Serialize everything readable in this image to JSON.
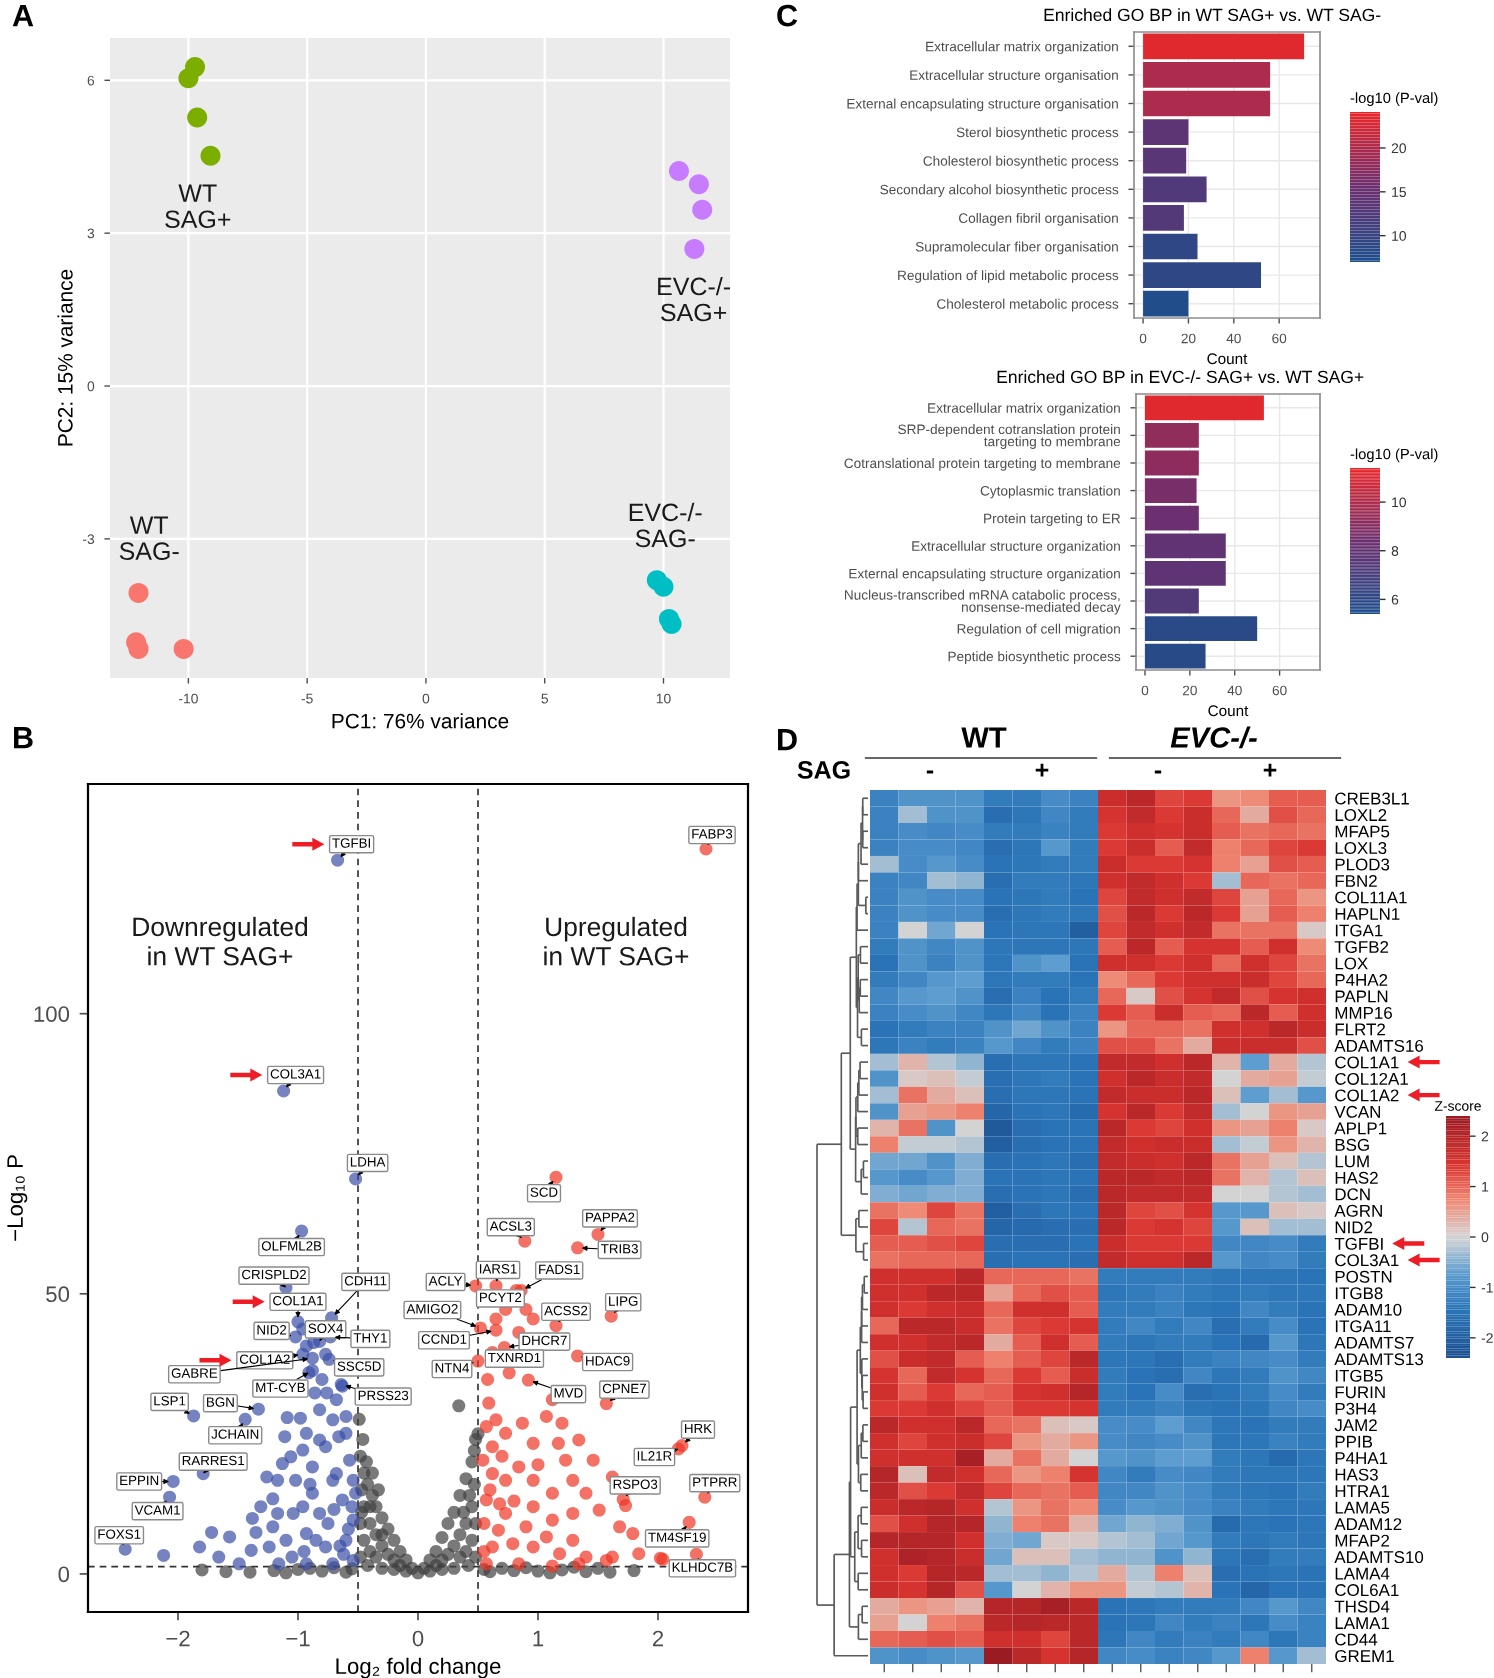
{
  "chart_data": [
    {
      "type": "scatter",
      "annotations": [
        "A"
      ],
      "xlabel": "PC1: 76% variance",
      "ylabel": "PC2: 15% variance",
      "xlim": [
        -13.3,
        12.8
      ],
      "ylim": [
        -5.73,
        6.83
      ],
      "xticks": [
        -10,
        -5,
        0,
        5,
        10
      ],
      "yticks": [
        -3,
        0,
        3,
        6
      ],
      "grid": true,
      "marker": "circle",
      "series": [
        {
          "name": "WT\nSAG+",
          "color": "#7cae00",
          "x": [
            -9.72,
            -10.0,
            -9.63,
            -9.07
          ],
          "values": [
            6.26,
            6.04,
            5.27,
            4.52
          ]
        },
        {
          "name": "EVC-/-\nSAG+",
          "color": "#c77cff",
          "x": [
            10.65,
            11.49,
            11.63,
            11.3
          ],
          "values": [
            4.22,
            3.96,
            3.46,
            2.69
          ]
        },
        {
          "name": "WT\nSAG-",
          "color": "#f8766d",
          "x": [
            -12.1,
            -12.2,
            -12.1,
            -10.2
          ],
          "values": [
            -4.06,
            -5.03,
            -5.16,
            -5.16
          ]
        },
        {
          "name": "EVC-/-\nSAG-",
          "color": "#00bfc4",
          "x": [
            9.72,
            10.0,
            10.23,
            10.34
          ],
          "values": [
            -3.81,
            -3.94,
            -4.57,
            -4.67
          ]
        }
      ]
    },
    {
      "type": "bar",
      "orientation": "horizontal",
      "title": "Enriched GO BP in WT SAG+ vs. WT SAG-",
      "annotations": [
        "C"
      ],
      "categories": [
        "Extracellular matrix organization",
        "Extracellular structure organisation",
        "External encapsulating structure organisation",
        "Sterol biosynthetic process",
        "Cholesterol biosynthetic process",
        "Secondary alcohol biosynthetic process",
        "Collagen fibril organisation",
        "Supramolecular fiber organisation",
        "Regulation of lipid metabolic process",
        "Cholesterol metabolic process"
      ],
      "values": [
        71,
        56,
        56,
        20,
        19,
        28,
        18,
        24,
        52,
        20
      ],
      "cvalues": [
        23.5,
        20,
        20,
        14,
        13.5,
        12.5,
        13,
        9,
        9,
        7.5
      ],
      "clabel": "-log10 (P-val)",
      "clim": [
        7.0,
        24.1
      ],
      "cticks": [
        10,
        15,
        20
      ],
      "xlabel": "Count",
      "xlim": [
        -4,
        78
      ],
      "xticks": [
        0,
        20,
        40,
        60
      ],
      "grid": true
    },
    {
      "type": "bar",
      "orientation": "horizontal",
      "title": "Enriched GO BP in EVC-/- SAG+ vs. WT SAG+",
      "categories": [
        "Extracellular matrix organization",
        "SRP-dependent cotranslation protein\ntargeting to membrane",
        "Cotranslational protein targeting to membrane",
        "Cytoplasmic translation",
        "Protein targeting to ER",
        "Extracellular structure organization",
        "External encapsulating structure organization",
        "Nucleus-transcribed mRNA catabolic process,\nnonsense-mediated decay",
        "Regulation of cell migration",
        "Peptide biosynthetic process"
      ],
      "values": [
        53,
        24,
        24,
        23,
        24,
        36,
        36,
        24,
        50,
        27
      ],
      "cvalues": [
        11.2,
        9.3,
        9.2,
        8.7,
        8.4,
        8.0,
        7.9,
        7.4,
        5.9,
        5.8
      ],
      "clabel": "-log10 (P-val)",
      "clim": [
        5.4,
        11.4
      ],
      "cticks": [
        6,
        8,
        10
      ],
      "xlabel": "Count",
      "xlim": [
        -4,
        78
      ],
      "xticks": [
        0,
        20,
        40,
        60
      ],
      "grid": true
    },
    {
      "type": "scatter",
      "xlabel": "Log₂ fold change",
      "ylabel": "−Log₁₀ P",
      "xlim": [
        -2.75,
        2.75
      ],
      "ylim": [
        -6.8,
        141
      ],
      "xticks": [
        {
          "value": -2,
          "label": "−2"
        },
        {
          "value": -1,
          "label": "−1"
        },
        0,
        1,
        2
      ],
      "yticks": [
        0,
        50,
        100
      ],
      "marker": "circle",
      "ref_lines": [
        {
          "axis": "x",
          "value": -0.5,
          "line_style": "dashed"
        },
        {
          "axis": "x",
          "value": 0.5,
          "line_style": "dashed"
        },
        {
          "axis": "y",
          "value": 1.3,
          "line_style": "dashed"
        }
      ],
      "annotations": [
        "B",
        "Downregulated\nin WT SAG+",
        "Upregulated\nin WT SAG+",
        {
          "text": "TGFBI",
          "x": -0.67,
          "y": 127.4
        },
        {
          "text": "COL3A1",
          "x": -1.12,
          "y": 86.2
        },
        {
          "text": "LDHA",
          "x": -0.52,
          "y": 70.5
        },
        {
          "text": "OLFML2B",
          "x": -0.97,
          "y": 61.2
        },
        {
          "text": "CRISPLD2",
          "x": -1.1,
          "y": 51.1
        },
        {
          "text": "CDH11",
          "x": -0.72,
          "y": 45.7
        },
        {
          "text": "COL1A1",
          "x": -1.0,
          "y": 45.0
        },
        {
          "text": "NID2",
          "x": -1.02,
          "y": 42.3
        },
        {
          "text": "SOX4",
          "x": -0.82,
          "y": 41.5
        },
        {
          "text": "THY1",
          "x": -0.73,
          "y": 42.3
        },
        {
          "text": "COL1A2",
          "x": -0.96,
          "y": 39.2
        },
        {
          "text": "GABRE",
          "x": -0.88,
          "y": 38.5
        },
        {
          "text": "MT-CYB",
          "x": -0.88,
          "y": 36.3
        },
        {
          "text": "SSC5D",
          "x": -0.74,
          "y": 38.3
        },
        {
          "text": "PRSS23",
          "x": -0.64,
          "y": 33.8
        },
        {
          "text": "LSP1",
          "x": -1.87,
          "y": 28.2
        },
        {
          "text": "BGN",
          "x": -1.33,
          "y": 29.4
        },
        {
          "text": "JCHAIN",
          "x": -1.44,
          "y": 27.6
        },
        {
          "text": "RARRES1",
          "x": -1.79,
          "y": 17.9
        },
        {
          "text": "EPPIN",
          "x": -2.04,
          "y": 16.5
        },
        {
          "text": "VCAM1",
          "x": -2.07,
          "y": 13.7
        },
        {
          "text": "FOXS1",
          "x": -2.44,
          "y": 4.4
        },
        {
          "text": "FABP3",
          "x": 2.4,
          "y": 129.4
        },
        {
          "text": "SCD",
          "x": 1.15,
          "y": 70.8
        },
        {
          "text": "ACSL3",
          "x": 0.89,
          "y": 59.4
        },
        {
          "text": "PAPPA2",
          "x": 1.5,
          "y": 60.6
        },
        {
          "text": "TRIB3",
          "x": 1.33,
          "y": 58.2
        },
        {
          "text": "FADS1",
          "x": 0.86,
          "y": 50.6
        },
        {
          "text": "IARS1",
          "x": 0.65,
          "y": 51.4
        },
        {
          "text": "ACLY",
          "x": 0.48,
          "y": 51.4
        },
        {
          "text": "PCYT2",
          "x": 0.82,
          "y": 50.6
        },
        {
          "text": "AMIGO2",
          "x": 0.52,
          "y": 43.9
        },
        {
          "text": "ACSS2",
          "x": 1.15,
          "y": 44.3
        },
        {
          "text": "LIPG",
          "x": 1.61,
          "y": 46.0
        },
        {
          "text": "CCND1",
          "x": 0.65,
          "y": 43.5
        },
        {
          "text": "DHCR7",
          "x": 0.72,
          "y": 40.4
        },
        {
          "text": "HDAC9",
          "x": 1.33,
          "y": 38.9
        },
        {
          "text": "NTN4",
          "x": 0.5,
          "y": 38.0
        },
        {
          "text": "TXNRD1",
          "x": 0.62,
          "y": 39.5
        },
        {
          "text": "MVD",
          "x": 0.92,
          "y": 34.6
        },
        {
          "text": "CPNE7",
          "x": 1.57,
          "y": 30.4
        },
        {
          "text": "HRK",
          "x": 2.2,
          "y": 22.9
        },
        {
          "text": "IL21R",
          "x": 2.17,
          "y": 22.3
        },
        {
          "text": "RSPO3",
          "x": 1.71,
          "y": 13.3
        },
        {
          "text": "PTPRR",
          "x": 2.39,
          "y": 13.7
        },
        {
          "text": "TM4SF19",
          "x": 2.26,
          "y": 9.2
        },
        {
          "text": "KLHDC7B",
          "x": 2.32,
          "y": 3.5
        }
      ],
      "series": [
        {
          "color": "#404040",
          "x": [
            -0.49,
            -0.46,
            -0.48,
            -0.45,
            -0.47,
            -0.42,
            -0.38,
            -0.35,
            -0.3,
            -0.25,
            -0.2,
            -0.15,
            -0.1,
            -0.05,
            0,
            -0.45,
            -0.4,
            -0.35,
            -0.3,
            -0.25,
            -0.2,
            -0.45,
            -0.4,
            -0.35,
            -0.48,
            -0.48,
            -0.42,
            -0.3,
            -0.2,
            -0.1,
            -0.47,
            -0.43,
            -0.38,
            -0.33,
            -0.4,
            -0.3,
            -0.15,
            0.05,
            0.1,
            0.15,
            0.2,
            0.25,
            0.3,
            0.35,
            0.4,
            0.45,
            0.48,
            0.5,
            0.34,
            0.47,
            0.45,
            0.4,
            0.35,
            0.3,
            0.25,
            0.2,
            0.45,
            0.4,
            0.35,
            0.48,
            0.48,
            0.42,
            0.3,
            0.2,
            0.1,
            0.47,
            0.43,
            0.38,
            0.15,
            -1.6,
            -1.4,
            -1.2,
            -1.1,
            -1.0,
            -0.9,
            -0.8,
            -0.7,
            -0.6,
            -0.55,
            0.55,
            0.6,
            0.7,
            0.8,
            0.9,
            1.0,
            1.1,
            1.2,
            1.3,
            1.4,
            1.5,
            1.6,
            1.8,
            -1.8
          ],
          "values": [
            27.6,
            24,
            21,
            18,
            15,
            16,
            14,
            12,
            10,
            8,
            6,
            4,
            2.5,
            1,
            0.2,
            12,
            9,
            7,
            5,
            3.5,
            2.5,
            6,
            4,
            3,
            3,
            9,
            1.5,
            1,
            0.8,
            0.5,
            11,
            20,
            18,
            15,
            12,
            7,
            1.5,
            1,
            2.5,
            4,
            6.5,
            9,
            11,
            14,
            17,
            20,
            24,
            25,
            30,
            22,
            12,
            9,
            7,
            5,
            3.5,
            2.5,
            6,
            4,
            3,
            3,
            9,
            1.5,
            1,
            0.8,
            0.5,
            16,
            14,
            11,
            1.5,
            0.4,
            0.3,
            0.6,
            0.2,
            0.8,
            1.0,
            0.5,
            1.1,
            0.3,
            0.9,
            0.8,
            0.4,
            1.0,
            0.6,
            1.1,
            0.5,
            0.2,
            0.7,
            1.2,
            0.4,
            1.0,
            0.3,
            0.6,
            0.7
          ]
        },
        {
          "color": "#3b4ea6",
          "x": [
            -0.67,
            -1.12,
            -0.52,
            -0.97,
            -1.1,
            -0.72,
            -1.0,
            -1.02,
            -0.82,
            -0.73,
            -0.96,
            -0.88,
            -0.88,
            -0.74,
            -0.64,
            -1.87,
            -1.33,
            -1.44,
            -1.79,
            -2.04,
            -2.07,
            -2.44,
            -2.12,
            -1.72,
            -1.57,
            -1.38,
            -1.35,
            -1.24,
            -1.39,
            -1.21,
            -1.17,
            -1.13,
            -1.11,
            -1.06,
            -1.09,
            -0.98,
            -0.93,
            -1.02,
            -0.96,
            -0.88,
            -0.82,
            -0.77,
            -0.71,
            -0.68,
            -0.76,
            -0.63,
            -0.6,
            -0.57,
            -0.71,
            -0.63,
            -0.82,
            -0.93,
            -1.1,
            -0.77,
            -0.6,
            -0.54,
            -0.54,
            -0.71,
            -0.93,
            -1.16,
            -1.49,
            -1.66,
            -1.82,
            -1.04,
            -1.21,
            -0.88,
            -0.68,
            -0.54,
            -0.52,
            -0.82,
            -0.96,
            -1.26,
            -1.17,
            -1.31,
            -0.93,
            -0.96,
            -0.87,
            -0.77,
            -0.8,
            -0.91,
            -0.86,
            -0.66,
            -0.6,
            -0.55,
            -0.58,
            -0.65,
            -0.75,
            -0.85,
            -0.95,
            -1.05,
            -0.62,
            -0.7,
            -0.9
          ],
          "values": [
            127.4,
            86.2,
            70.5,
            61.2,
            51.1,
            45.7,
            45.0,
            42.3,
            41.5,
            42.3,
            39.2,
            38.5,
            36.3,
            38.3,
            33.8,
            28.2,
            29.4,
            27.6,
            17.9,
            16.5,
            13.7,
            4.4,
            3.3,
            7.4,
            6.6,
            9.9,
            7.4,
            4.8,
            4.2,
            13.4,
            16.7,
            19.7,
            24.5,
            20.9,
            27.9,
            27.8,
            25.1,
            16.7,
            12.0,
            19.1,
            29.3,
            22.7,
            27.5,
            31.1,
            32.3,
            33.5,
            25.1,
            20.3,
            16.7,
            13.2,
            10.8,
            7.2,
            6.0,
            4.8,
            6.0,
            9.6,
            2.4,
            1.8,
            1.8,
            1.8,
            1.8,
            3.0,
            4.8,
            10.8,
            8.4,
            14.4,
            17.9,
            16.7,
            14.4,
            23.9,
            22.1,
            17.3,
            10.8,
            12.0,
            40.7,
            43.7,
            41.3,
            39.2,
            34.7,
            35.9,
            32.3,
            24.5,
            28.1,
            12,
            8,
            5,
            9,
            6,
            4,
            3,
            3.5,
            11.5,
            16
          ]
        },
        {
          "color": "#ee3524",
          "x": [
            2.4,
            1.15,
            0.89,
            1.5,
            1.33,
            0.86,
            0.65,
            0.48,
            0.82,
            0.52,
            1.15,
            1.61,
            0.65,
            0.72,
            1.33,
            0.5,
            0.62,
            0.92,
            1.57,
            2.2,
            2.17,
            1.71,
            2.39,
            2.26,
            2.32,
            0.59,
            0.65,
            0.73,
            0.62,
            0.87,
            0.96,
            1.07,
            1.17,
            1.23,
            1.34,
            1.46,
            1.62,
            1.4,
            1.29,
            1.12,
            0.96,
            0.84,
            0.73,
            0.62,
            0.57,
            0.73,
            0.96,
            1.12,
            1.29,
            1.51,
            1.68,
            1.79,
            2.02,
            2.04,
            1.84,
            1.62,
            1.4,
            1.18,
            0.96,
            0.79,
            0.62,
            0.57,
            0.84,
            1.12,
            1.34,
            1.57,
            0.67,
            0.9,
            1.07,
            1.29,
            0.54,
            0.57,
            0.58,
            0.76,
            0.65,
            0.73,
            0.9,
            0.96,
            0.84,
            1.12,
            1.2,
            1.73,
            0.55,
            0.6,
            0.7,
            0.8,
            0.55,
            0.68,
            1.0
          ],
          "values": [
            129.4,
            70.8,
            59.4,
            60.6,
            58.2,
            50.6,
            51.4,
            51.4,
            50.6,
            43.9,
            44.3,
            46.0,
            43.5,
            40.4,
            38.9,
            38.0,
            39.5,
            34.6,
            30.4,
            22.9,
            22.3,
            13.3,
            13.7,
            9.2,
            3.5,
            30.5,
            27.5,
            25.1,
            22.7,
            26.9,
            23.3,
            28.1,
            23.3,
            20.3,
            23.9,
            20.3,
            17.3,
            14.4,
            16.7,
            14.4,
            16.7,
            19.1,
            16.7,
            17.9,
            13.2,
            10.8,
            12.0,
            9.6,
            10.8,
            11.4,
            8.4,
            7.2,
            2.8,
            2.6,
            3.6,
            3.0,
            3.0,
            3.6,
            4.8,
            5.4,
            4.8,
            1.8,
            1.8,
            1.4,
            1.8,
            2.4,
            7.8,
            8.4,
            6.6,
            6.0,
            20.3,
            26.3,
            34.7,
            35.9,
            45.5,
            47.2,
            47.2,
            45.5,
            43.1,
            31.1,
            26.9,
            12.2,
            9,
            15,
            21,
            13,
            4,
            12.5,
            19.5
          ]
        }
      ]
    },
    {
      "type": "heatmap",
      "annotations": [
        "D",
        "WT",
        "EVC-/-",
        "SAG",
        "-",
        "+",
        "-",
        "+"
      ],
      "categories": [
        null,
        null,
        null,
        null,
        null,
        null,
        null,
        null,
        null,
        null,
        null,
        null,
        null,
        null,
        null,
        null
      ],
      "y_categories": [
        "CREB3L1",
        "LOXL2",
        "MFAP5",
        "LOXL3",
        "PLOD3",
        "FBN2",
        "COL11A1",
        "HAPLN1",
        "ITGA1",
        "TGFB2",
        "LOX",
        "P4HA2",
        "PAPLN",
        "MMP16",
        "FLRT2",
        "ADAMTS16",
        "COL1A1",
        "COL12A1",
        "COL1A2",
        "VCAN",
        "APLP1",
        "BSG",
        "LUM",
        "HAS2",
        "DCN",
        "AGRN",
        "NID2",
        "TGFBI",
        "COL3A1",
        "POSTN",
        "ITGB8",
        "ADAM10",
        "ITGA11",
        "ADAMTS7",
        "ADAMTS13",
        "ITGB5",
        "FURIN",
        "P3H4",
        "JAM2",
        "PPIB",
        "P4HA1",
        "HAS3",
        "HTRA1",
        "LAMA5",
        "ADAM12",
        "MFAP2",
        "ADAMTS10",
        "LAMA4",
        "COL6A1",
        "THSD4",
        "LAMA1",
        "CD44",
        "GREM1"
      ],
      "clabel": "Z-score",
      "clim": [
        -2.4,
        2.4
      ],
      "cticks": [
        -2,
        -1,
        0,
        1,
        2
      ],
      "cells": [
        [
          -1.2,
          -0.9,
          -0.9,
          -0.9,
          -1.3,
          -1.3,
          -1.0,
          -1.2,
          1.7,
          1.9,
          1.3,
          1.4,
          0.6,
          0.7,
          1.1,
          1.1
        ],
        [
          -1.2,
          -0.3,
          -0.9,
          -0.9,
          -1.6,
          -1.4,
          -1.1,
          -1.3,
          1.5,
          1.8,
          1.4,
          1.7,
          1.0,
          0.4,
          1.2,
          1.0
        ],
        [
          -1.2,
          -1.0,
          -1.1,
          -1.0,
          -1.3,
          -1.3,
          -1.2,
          -1.3,
          1.4,
          1.6,
          1.5,
          1.7,
          1.1,
          0.9,
          1.0,
          0.9
        ],
        [
          -1.2,
          -1.0,
          -1.0,
          -1.1,
          -1.6,
          -1.4,
          -0.8,
          -1.3,
          1.4,
          1.7,
          1.1,
          1.8,
          0.8,
          1.0,
          1.3,
          1.4
        ],
        [
          -0.3,
          -1.0,
          -0.8,
          -1.0,
          -1.5,
          -1.4,
          -1.3,
          -1.3,
          1.7,
          1.4,
          1.4,
          1.5,
          0.8,
          0.5,
          1.2,
          1.1
        ],
        [
          -1.2,
          -1.1,
          -0.3,
          -0.4,
          -1.6,
          -1.3,
          -1.3,
          -1.4,
          1.6,
          1.8,
          1.6,
          1.4,
          -0.3,
          1.0,
          0.9,
          1.0
        ],
        [
          -1.2,
          -0.9,
          -1.0,
          -1.0,
          -1.5,
          -1.4,
          -1.3,
          -1.5,
          1.3,
          1.8,
          1.6,
          1.8,
          1.3,
          0.5,
          1.0,
          0.6
        ],
        [
          -1.2,
          -0.9,
          -1.0,
          -1.0,
          -1.6,
          -1.4,
          -1.3,
          -1.4,
          1.2,
          1.9,
          1.4,
          1.9,
          1.4,
          0.5,
          1.1,
          0.8
        ],
        [
          -1.2,
          0.0,
          -0.6,
          0.0,
          -1.5,
          -1.4,
          -1.4,
          -2.0,
          1.3,
          1.8,
          1.6,
          1.8,
          0.9,
          0.9,
          0.9,
          0.1
        ],
        [
          -1.3,
          -0.9,
          -1.1,
          -0.9,
          -1.4,
          -1.4,
          -1.4,
          -1.4,
          1.1,
          1.9,
          1.1,
          1.5,
          1.5,
          1.1,
          1.6,
          0.7
        ],
        [
          -1.5,
          -0.9,
          -1.2,
          -0.9,
          -1.4,
          -0.9,
          -0.7,
          -1.5,
          1.6,
          1.6,
          1.4,
          1.6,
          1.0,
          1.6,
          1.3,
          0.9
        ],
        [
          -1.3,
          -1.1,
          -0.8,
          -0.7,
          -1.4,
          -1.3,
          -1.3,
          -1.5,
          0.7,
          1.0,
          1.4,
          1.6,
          1.6,
          1.7,
          1.3,
          1.0
        ],
        [
          -1.1,
          -0.8,
          -0.7,
          -0.9,
          -1.6,
          -1.2,
          -1.5,
          -1.3,
          1.0,
          0.1,
          1.2,
          1.5,
          1.8,
          1.2,
          1.5,
          1.6
        ],
        [
          -1.2,
          -1.0,
          -0.9,
          -1.1,
          -1.4,
          -1.1,
          -1.5,
          -1.2,
          1.4,
          1.1,
          1.7,
          1.1,
          1.0,
          1.9,
          1.1,
          1.6
        ],
        [
          -1.5,
          -1.3,
          -1.2,
          -1.2,
          -0.9,
          -0.6,
          -0.9,
          -1.2,
          0.6,
          1.0,
          1.0,
          0.9,
          1.6,
          1.6,
          1.9,
          1.7
        ],
        [
          -1.4,
          -1.2,
          -1.3,
          -1.2,
          -0.8,
          -1.1,
          -1.3,
          -1.2,
          1.2,
          1.2,
          0.9,
          0.4,
          1.7,
          1.7,
          1.7,
          1.2
        ],
        [
          -0.3,
          0.3,
          -0.2,
          -0.4,
          -1.6,
          -1.4,
          -1.4,
          -1.5,
          1.8,
          1.8,
          1.6,
          1.9,
          0.3,
          -0.7,
          0.4,
          -0.2
        ],
        [
          -0.9,
          0.1,
          0.2,
          -0.1,
          -1.6,
          -1.4,
          -1.3,
          -1.5,
          1.6,
          1.9,
          1.7,
          1.8,
          0.0,
          0.4,
          0.5,
          -0.1
        ],
        [
          -0.3,
          0.9,
          0.4,
          0.2,
          -1.6,
          -1.4,
          -1.4,
          -1.5,
          1.8,
          1.7,
          1.7,
          1.9,
          0.2,
          -0.7,
          -0.3,
          -0.8
        ],
        [
          -0.9,
          0.5,
          0.6,
          0.8,
          -1.8,
          -1.5,
          -1.4,
          -1.7,
          1.5,
          1.9,
          1.4,
          1.8,
          -0.3,
          0.0,
          0.6,
          0.5
        ],
        [
          0.3,
          0.9,
          -0.9,
          0.0,
          -2.1,
          -1.6,
          -1.5,
          -1.5,
          1.9,
          1.4,
          1.3,
          1.6,
          0.6,
          0.5,
          0.8,
          0.1
        ],
        [
          0.8,
          -0.1,
          -0.1,
          -0.2,
          -2.0,
          -1.6,
          -1.5,
          -1.5,
          1.8,
          1.6,
          1.7,
          1.7,
          -0.3,
          -0.1,
          0.6,
          0.3
        ],
        [
          -0.6,
          -0.6,
          -0.9,
          -0.5,
          -1.6,
          -1.5,
          -1.4,
          -1.6,
          1.8,
          1.7,
          1.6,
          1.9,
          0.9,
          0.5,
          0.2,
          -0.2
        ],
        [
          -0.8,
          -1.0,
          -0.8,
          -0.5,
          -1.5,
          -1.5,
          -1.4,
          -1.5,
          1.9,
          1.9,
          1.8,
          1.9,
          0.9,
          0.3,
          -0.2,
          0.2
        ],
        [
          -0.5,
          -0.6,
          -0.5,
          -0.5,
          -1.6,
          -1.5,
          -1.4,
          -1.6,
          1.9,
          1.8,
          1.8,
          1.8,
          0.0,
          0.0,
          -0.2,
          -0.3
        ],
        [
          0.9,
          0.7,
          1.3,
          0.9,
          -2.0,
          -1.6,
          -1.4,
          -1.5,
          1.9,
          1.3,
          1.2,
          1.5,
          -0.8,
          -0.8,
          0.2,
          0.1
        ],
        [
          1.3,
          -0.2,
          1.0,
          0.9,
          -1.8,
          -1.7,
          -1.6,
          -1.6,
          1.9,
          1.4,
          1.5,
          1.3,
          -0.8,
          0.2,
          -0.3,
          -0.3
        ],
        [
          1.1,
          1.1,
          1.2,
          1.3,
          -1.6,
          -1.6,
          -1.6,
          -1.5,
          1.7,
          1.4,
          1.4,
          1.4,
          -1.1,
          -1.1,
          -1.0,
          -1.3
        ],
        [
          0.9,
          1.0,
          1.0,
          1.0,
          -1.6,
          -1.5,
          -1.5,
          -1.6,
          1.8,
          1.6,
          1.6,
          1.9,
          -0.8,
          -1.1,
          -1.0,
          -1.3
        ],
        [
          1.6,
          1.6,
          1.6,
          1.9,
          1.0,
          1.0,
          1.0,
          0.9,
          -1.3,
          -1.3,
          -1.3,
          -1.3,
          -1.4,
          -1.4,
          -1.4,
          -1.5
        ],
        [
          1.6,
          1.6,
          1.9,
          1.9,
          0.5,
          1.0,
          1.2,
          1.1,
          -1.4,
          -1.3,
          -1.2,
          -1.3,
          -1.4,
          -1.3,
          -1.4,
          -1.4
        ],
        [
          1.6,
          1.4,
          1.6,
          1.7,
          1.0,
          1.6,
          1.6,
          1.1,
          -1.3,
          -1.3,
          -1.2,
          -1.4,
          -1.5,
          -1.1,
          -1.3,
          -1.5
        ],
        [
          1.0,
          1.9,
          1.9,
          1.7,
          0.9,
          1.3,
          1.4,
          1.5,
          -1.3,
          -1.1,
          -1.3,
          -1.1,
          -1.6,
          -1.3,
          -1.0,
          -1.5
        ],
        [
          1.6,
          1.6,
          1.8,
          1.9,
          0.4,
          1.1,
          1.6,
          1.1,
          -1.3,
          -1.4,
          -1.3,
          -1.3,
          -1.5,
          -1.7,
          -0.8,
          -1.4
        ],
        [
          1.2,
          1.7,
          1.8,
          1.1,
          0.8,
          1.1,
          1.3,
          1.9,
          -1.4,
          -1.4,
          -1.6,
          -1.3,
          -1.2,
          -1.1,
          -1.0,
          -1.3
        ],
        [
          1.5,
          1.0,
          1.8,
          1.5,
          1.0,
          1.4,
          1.1,
          1.7,
          -1.3,
          -1.5,
          -1.6,
          -1.1,
          -1.4,
          -1.3,
          -0.9,
          -1.1
        ],
        [
          1.6,
          1.1,
          1.4,
          1.0,
          1.1,
          1.5,
          1.6,
          2.0,
          -1.3,
          -1.5,
          -1.0,
          -1.6,
          -1.5,
          -1.3,
          -1.0,
          -1.3
        ],
        [
          1.4,
          1.4,
          1.6,
          1.3,
          1.1,
          1.4,
          1.4,
          1.5,
          -1.3,
          -1.3,
          -1.2,
          -1.4,
          -1.5,
          -1.4,
          -1.1,
          -1.0
        ],
        [
          1.9,
          1.6,
          1.6,
          1.9,
          1.0,
          0.9,
          0.2,
          0.1,
          -1.0,
          -1.0,
          -0.7,
          -1.1,
          -1.4,
          -1.5,
          -1.3,
          -1.3
        ],
        [
          1.6,
          1.3,
          1.6,
          1.7,
          1.3,
          0.6,
          0.4,
          0.6,
          -1.0,
          -1.1,
          -1.0,
          -0.9,
          -1.4,
          -1.4,
          -1.2,
          -1.3
        ],
        [
          1.6,
          1.6,
          1.6,
          2.2,
          0.4,
          0.9,
          0.4,
          0.0,
          -0.8,
          -0.9,
          -0.7,
          -0.7,
          -1.3,
          -1.4,
          -1.7,
          -1.4
        ],
        [
          2.0,
          0.2,
          1.8,
          1.6,
          1.0,
          0.6,
          0.8,
          1.5,
          -1.1,
          -1.3,
          -1.0,
          -1.1,
          -1.3,
          -1.4,
          -1.4,
          -1.4
        ],
        [
          1.9,
          1.2,
          1.4,
          1.8,
          1.3,
          1.0,
          0.9,
          1.1,
          -1.1,
          -1.1,
          -0.9,
          -1.0,
          -1.3,
          -1.4,
          -1.5,
          -1.3
        ],
        [
          1.7,
          1.9,
          2.0,
          1.6,
          -0.2,
          0.6,
          0.9,
          0.7,
          -1.0,
          -0.8,
          -0.9,
          -1.0,
          -1.2,
          -1.3,
          -1.4,
          -1.4
        ],
        [
          1.2,
          1.6,
          2.0,
          2.0,
          -0.4,
          0.8,
          0.9,
          0.3,
          -0.6,
          -0.4,
          -0.5,
          -0.9,
          -1.7,
          -1.4,
          -1.5,
          -1.4
        ],
        [
          2.0,
          2.0,
          2.0,
          1.6,
          -0.5,
          -0.6,
          0.1,
          0.1,
          -0.2,
          -0.3,
          -0.6,
          -0.8,
          -1.3,
          -1.4,
          -1.3,
          -1.4
        ],
        [
          1.6,
          2.1,
          2.0,
          1.7,
          -0.6,
          0.2,
          0.2,
          -0.3,
          -0.4,
          -0.4,
          -0.9,
          -0.4,
          -1.4,
          -1.6,
          -1.3,
          -1.3
        ],
        [
          1.6,
          1.4,
          2.0,
          1.9,
          -0.3,
          -0.3,
          -0.4,
          -0.2,
          0.4,
          -0.2,
          0.8,
          0.2,
          -1.6,
          -1.5,
          -1.4,
          -1.5
        ],
        [
          1.7,
          1.5,
          2.0,
          1.2,
          -0.8,
          0.0,
          0.3,
          0.6,
          0.6,
          -0.1,
          -0.2,
          0.3,
          -1.5,
          -1.8,
          -1.5,
          -1.5
        ],
        [
          0.4,
          0.6,
          0.5,
          0.3,
          2.0,
          2.0,
          2.2,
          1.9,
          -1.5,
          -1.4,
          -1.3,
          -1.3,
          -1.3,
          -1.1,
          -0.8,
          -1.1
        ],
        [
          0.5,
          0.0,
          0.8,
          0.9,
          1.9,
          2.0,
          1.9,
          1.9,
          -1.5,
          -1.4,
          -1.1,
          -1.3,
          -1.2,
          -1.4,
          -1.0,
          -1.2
        ],
        [
          1.0,
          1.1,
          1.2,
          1.1,
          1.6,
          1.6,
          1.3,
          1.9,
          -1.4,
          -1.1,
          -1.3,
          -1.2,
          -1.3,
          -1.1,
          -1.4,
          -1.2
        ],
        [
          -0.9,
          -1.0,
          -0.9,
          -0.8,
          2.4,
          1.9,
          1.5,
          2.0,
          -1.1,
          -1.0,
          -1.2,
          -1.1,
          -0.8,
          0.8,
          -0.8,
          -0.3
        ]
      ]
    }
  ]
}
